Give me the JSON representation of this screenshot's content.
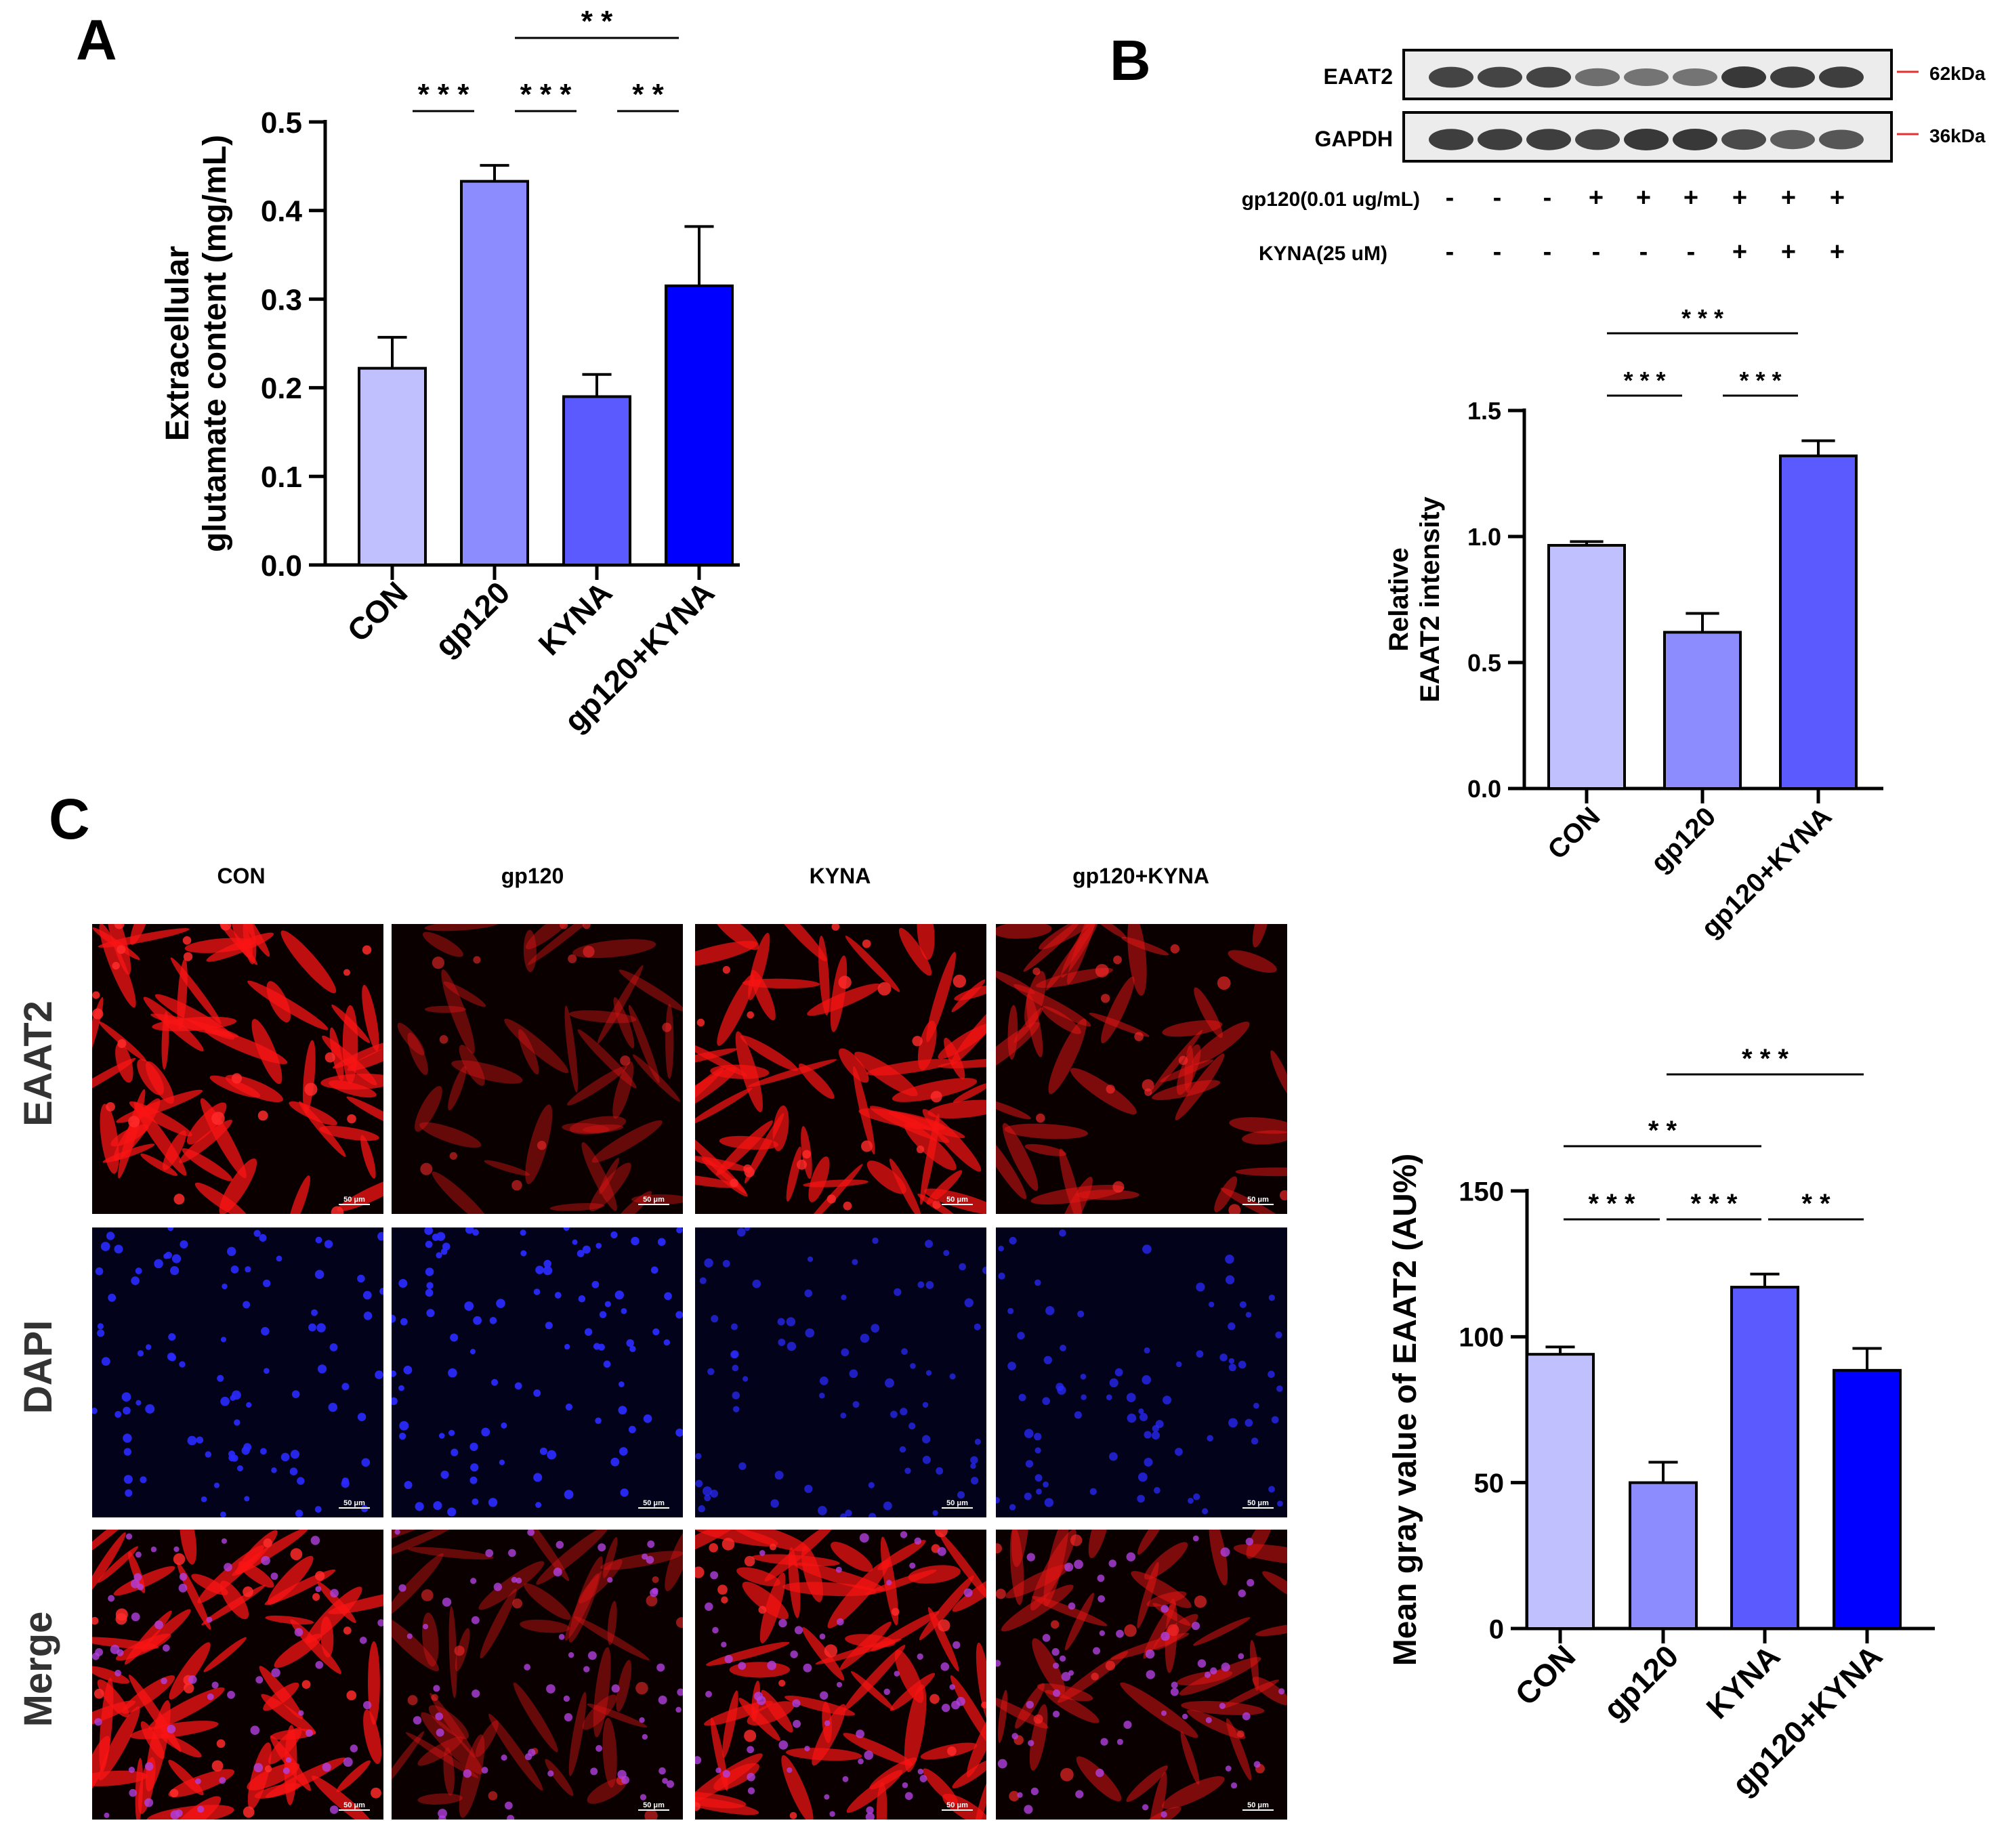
{
  "panels": {
    "a": "A",
    "b": "B",
    "c": "C"
  },
  "colors": {
    "con": "#c0c0ff",
    "gp120": "#8c8cff",
    "kyna": "#5a5aff",
    "gp120_kyna": "#0000ff",
    "axis": "#000000",
    "marker_line": "#e83030"
  },
  "chart_data": [
    {
      "id": "A",
      "type": "bar",
      "categories": [
        "CON",
        "gp120",
        "KYNA",
        "gp120+KYNA"
      ],
      "values": [
        0.222,
        0.433,
        0.19,
        0.315
      ],
      "errors": [
        0.035,
        0.018,
        0.025,
        0.067
      ],
      "ylabel_line1": "Extracellular",
      "ylabel_line2": "glutamate content (mg/mL)",
      "ylim": [
        0,
        0.5
      ],
      "yticks": [
        0.0,
        0.1,
        0.2,
        0.3,
        0.4,
        0.5
      ],
      "ytick_labels": [
        "0.0",
        "0.1",
        "0.2",
        "0.3",
        "0.4",
        "0.5"
      ],
      "significance": [
        {
          "from": 0,
          "to": 1,
          "label": "* * *"
        },
        {
          "from": 1,
          "to": 2,
          "label": "* * *"
        },
        {
          "from": 2,
          "to": 3,
          "label": "* *"
        },
        {
          "from": 1,
          "to": 3,
          "label": "* *"
        }
      ]
    },
    {
      "id": "B",
      "type": "bar",
      "categories": [
        "CON",
        "gp120",
        "gp120+KYNA"
      ],
      "values": [
        0.965,
        0.62,
        1.32
      ],
      "errors": [
        0.015,
        0.075,
        0.06
      ],
      "ylabel_line1": "Relative",
      "ylabel_line2": "EAAT2 intensity",
      "ylim": [
        0,
        1.5
      ],
      "yticks": [
        0.0,
        0.5,
        1.0,
        1.5
      ],
      "ytick_labels": [
        "0.0",
        "0.5",
        "1.0",
        "1.5"
      ],
      "significance": [
        {
          "from": 0,
          "to": 1,
          "label": "* * *"
        },
        {
          "from": 1,
          "to": 2,
          "label": "* * *"
        },
        {
          "from": 0,
          "to": 2,
          "label": "* * *"
        }
      ]
    },
    {
      "id": "C",
      "type": "bar",
      "categories": [
        "CON",
        "gp120",
        "KYNA",
        "gp120+KYNA"
      ],
      "values": [
        94,
        50,
        117,
        88.5
      ],
      "errors": [
        2.5,
        7,
        4.5,
        7.5
      ],
      "ylabel": "Mean gray value of EAAT2 (AU%)",
      "ylim": [
        0,
        150
      ],
      "yticks": [
        0,
        50,
        100,
        150
      ],
      "ytick_labels": [
        "0",
        "50",
        "100",
        "150"
      ],
      "significance": [
        {
          "from": 0,
          "to": 1,
          "label": "* * *"
        },
        {
          "from": 1,
          "to": 2,
          "label": "* * *"
        },
        {
          "from": 2,
          "to": 3,
          "label": "* *"
        },
        {
          "from": 0,
          "to": 2,
          "label": "* *"
        },
        {
          "from": 1,
          "to": 3,
          "label": "* * *"
        }
      ]
    }
  ],
  "western_blot": {
    "rows": [
      {
        "label": "EAAT2",
        "marker": "62kDa",
        "intensities": [
          0.9,
          0.9,
          0.9,
          0.55,
          0.5,
          0.5,
          1.0,
          0.95,
          0.95
        ]
      },
      {
        "label": "GAPDH",
        "marker": "36kDa",
        "intensities": [
          0.95,
          0.95,
          0.95,
          0.9,
          1.0,
          1.0,
          0.85,
          0.7,
          0.75
        ]
      }
    ],
    "treatments": [
      {
        "label": "gp120(0.01 ug/mL)",
        "signs": [
          "-",
          "-",
          "-",
          "+",
          "+",
          "+",
          "+",
          "+",
          "+"
        ]
      },
      {
        "label": "KYNA(25 uM)",
        "signs": [
          "-",
          "-",
          "-",
          "-",
          "-",
          "-",
          "+",
          "+",
          "+"
        ]
      }
    ]
  },
  "micrographs": {
    "columns": [
      "CON",
      "gp120",
      "KYNA",
      "gp120+KYNA"
    ],
    "rows": [
      "EAAT2",
      "DAPI",
      "Merge"
    ],
    "scale_bar": "50 μm",
    "eaat2_brightness": [
      0.9,
      0.35,
      0.85,
      0.5
    ],
    "dapi_brightness": [
      0.9,
      0.95,
      0.55,
      0.6
    ]
  }
}
